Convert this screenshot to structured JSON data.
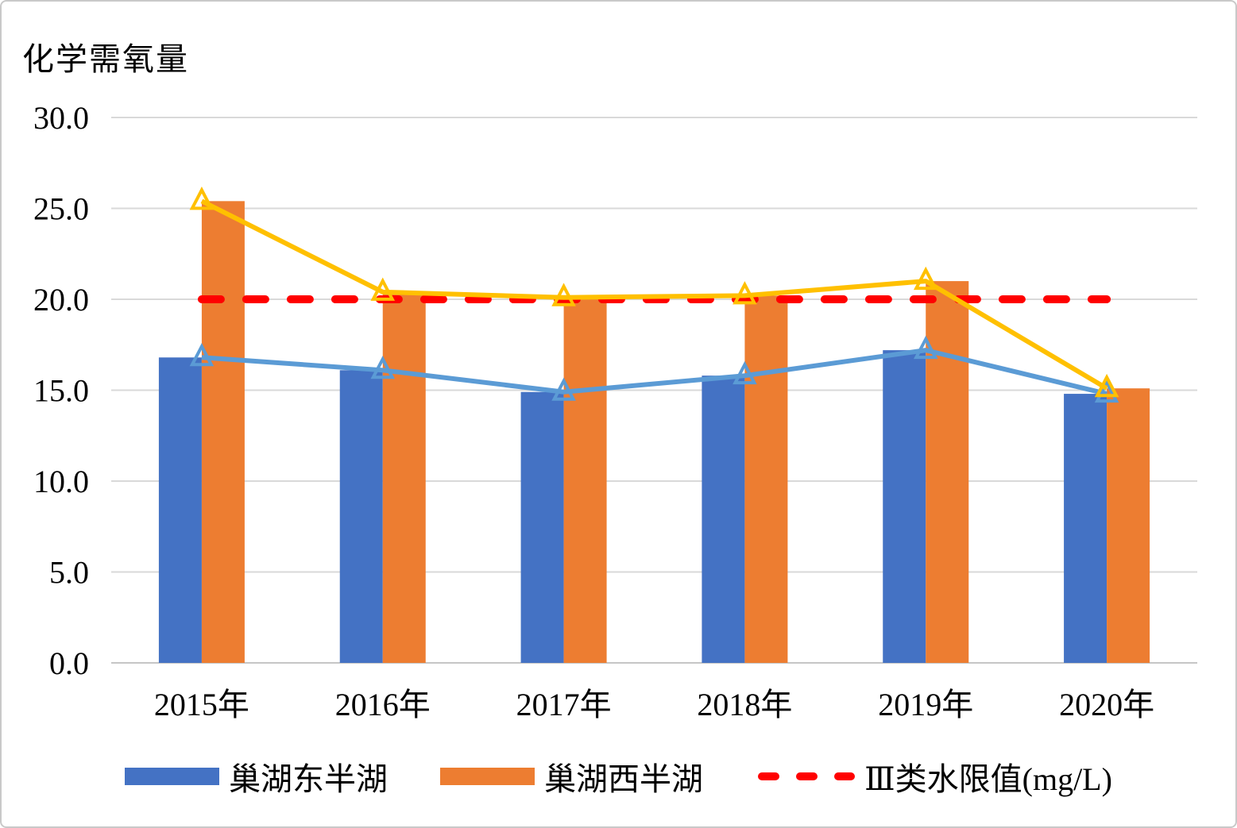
{
  "chart_data": {
    "type": "bar",
    "subtype": "grouped-bars-with-overlaid-lines",
    "title": "化学需氧量",
    "xlabel": "",
    "ylabel": "",
    "categories": [
      "2015年",
      "2016年",
      "2017年",
      "2018年",
      "2019年",
      "2020年"
    ],
    "series": [
      {
        "id": "east",
        "name": "巢湖东半湖",
        "kind": "bar-with-line",
        "bar_color": "#4472C4",
        "line_color": "#5B9BD5",
        "marker": "open-triangle",
        "values": [
          16.8,
          16.1,
          14.9,
          15.8,
          17.2,
          14.8
        ]
      },
      {
        "id": "west",
        "name": "巢湖西半湖",
        "kind": "bar-with-line",
        "bar_color": "#ED7D31",
        "line_color": "#FFC000",
        "marker": "open-triangle",
        "values": [
          25.4,
          20.4,
          20.1,
          20.2,
          21.0,
          15.1
        ]
      },
      {
        "id": "limit3",
        "name": "Ⅲ类水限值(mg/L)",
        "kind": "dashed-line",
        "line_color": "#FF0000",
        "values": [
          20,
          20,
          20,
          20,
          20,
          20
        ]
      }
    ],
    "ylim": [
      0,
      30
    ],
    "yticks": [
      0,
      5,
      10,
      15,
      20,
      25,
      30
    ],
    "ytick_labels": [
      "0.0",
      "5.0",
      "10.0",
      "15.0",
      "20.0",
      "25.0",
      "30.0"
    ],
    "grid": "horizontal",
    "grid_color": "#D9D9D9",
    "legend_position": "bottom"
  }
}
